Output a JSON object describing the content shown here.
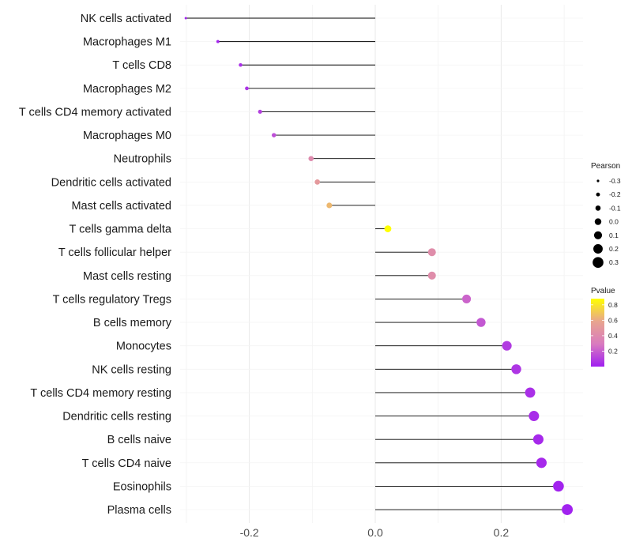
{
  "chart_data": {
    "type": "lollipop",
    "title": "",
    "xlabel": "",
    "ylabel": "",
    "xlim": [
      -0.31,
      0.33
    ],
    "x_ticks": [
      -0.2,
      0.0,
      0.2
    ],
    "x_tick_labels": [
      "-0.2",
      "0.0",
      "0.2"
    ],
    "grid": true,
    "legend_position": "right",
    "categories": [
      "NK cells activated",
      "Macrophages M1",
      "T cells CD8",
      "Macrophages M2",
      "T cells CD4 memory activated",
      "Macrophages M0",
      "Neutrophils",
      "Dendritic cells activated",
      "Mast cells activated",
      "T cells gamma delta",
      "T cells follicular helper",
      "Mast cells resting",
      "T cells regulatory  Tregs",
      "B cells memory",
      "Monocytes",
      "NK cells resting",
      "T cells CD4 memory resting",
      "Dendritic cells resting",
      "B cells naive",
      "T cells CD4 naive",
      "Eosinophils",
      "Plasma cells"
    ],
    "pearson": [
      -0.301,
      -0.25,
      -0.214,
      -0.204,
      -0.183,
      -0.161,
      -0.102,
      -0.092,
      -0.073,
      0.02,
      0.09,
      0.09,
      0.145,
      0.168,
      0.209,
      0.224,
      0.246,
      0.252,
      0.259,
      0.264,
      0.291,
      0.305
    ],
    "pvalue": [
      0.01,
      0.02,
      0.05,
      0.06,
      0.1,
      0.15,
      0.4,
      0.5,
      0.65,
      0.88,
      0.42,
      0.42,
      0.22,
      0.18,
      0.09,
      0.07,
      0.05,
      0.04,
      0.03,
      0.03,
      0.01,
      0.005
    ],
    "size_legend": {
      "title": "Pearson",
      "values": [
        -0.3,
        -0.2,
        -0.1,
        0.0,
        0.1,
        0.2,
        0.3
      ],
      "labels": [
        "-0.3",
        "-0.2",
        "-0.1",
        "0.0",
        "0.1",
        "0.2",
        "0.3"
      ]
    },
    "color_legend": {
      "title": "Pvalue",
      "range": [
        0.0,
        0.88
      ],
      "ticks": [
        0.2,
        0.4,
        0.6,
        0.8
      ],
      "tick_labels": [
        "0.2",
        "0.4",
        "0.6",
        "0.8"
      ],
      "colors": [
        "#a020f0",
        "#d97bbf",
        "#e8a58e",
        "#ffff00"
      ]
    },
    "stem_color": "#000000"
  }
}
